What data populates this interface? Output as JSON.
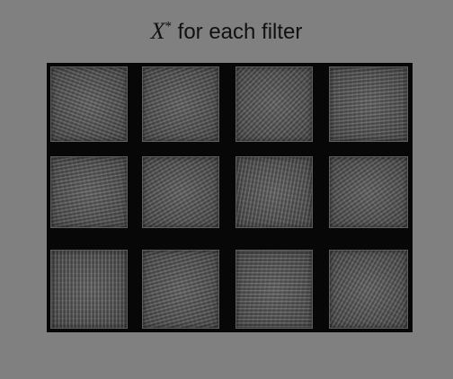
{
  "title": {
    "symbol": "X",
    "superscript": "*",
    "text": "for each filter"
  },
  "filters": [
    {
      "row": 1,
      "col": 1,
      "pattern": "blob-texture"
    },
    {
      "row": 1,
      "col": 2,
      "pattern": "blob-texture"
    },
    {
      "row": 1,
      "col": 3,
      "pattern": "diagonal-texture"
    },
    {
      "row": 1,
      "col": 4,
      "pattern": "horizontal-stripes"
    },
    {
      "row": 2,
      "col": 1,
      "pattern": "horizontal-stripes"
    },
    {
      "row": 2,
      "col": 2,
      "pattern": "diagonal-stripes"
    },
    {
      "row": 2,
      "col": 3,
      "pattern": "vertical-stripes"
    },
    {
      "row": 2,
      "col": 4,
      "pattern": "diagonal-stripes"
    },
    {
      "row": 3,
      "col": 1,
      "pattern": "vertical-stripes"
    },
    {
      "row": 3,
      "col": 2,
      "pattern": "wave-stripes"
    },
    {
      "row": 3,
      "col": 3,
      "pattern": "horizontal-stripes"
    },
    {
      "row": 3,
      "col": 4,
      "pattern": "diagonal-stripes"
    }
  ],
  "colors": {
    "background": "#808080",
    "grid_background": "#070707",
    "title_text": "#111111"
  }
}
